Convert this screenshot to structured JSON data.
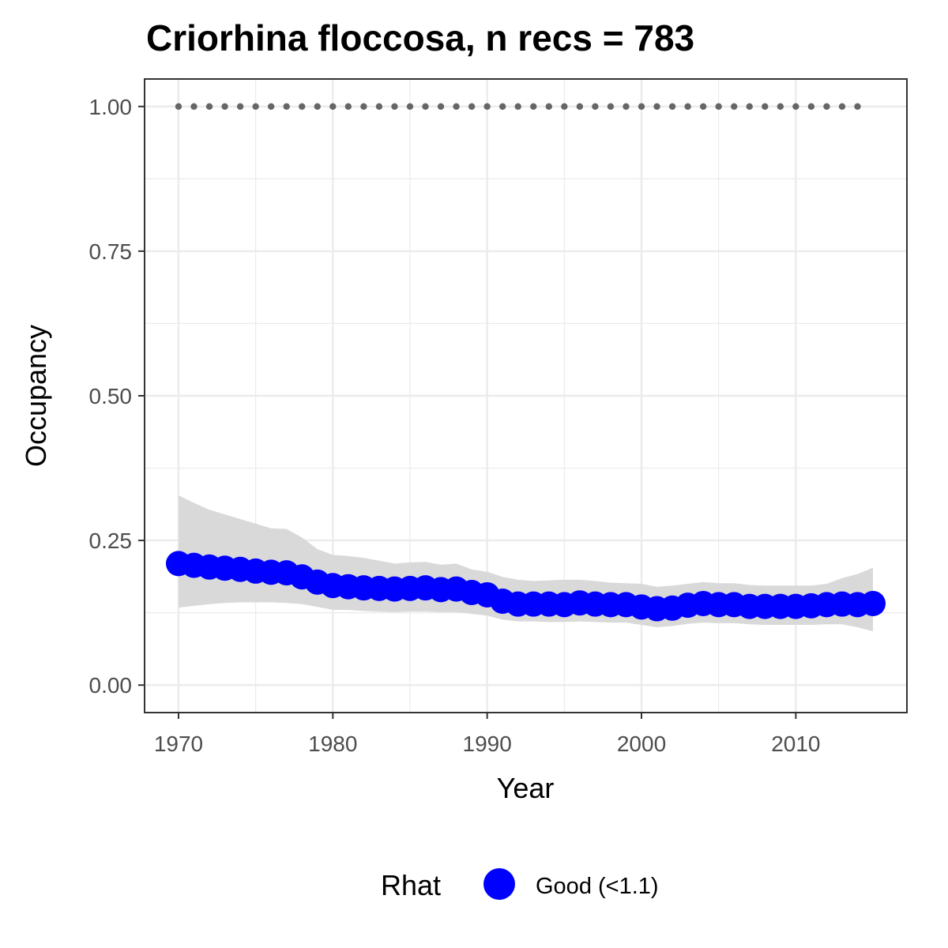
{
  "chart_data": {
    "type": "line",
    "title": "Criorhina floccosa, n recs = 783",
    "xlabel": "Year",
    "ylabel": "Occupancy",
    "xlim": [
      1967.8,
      2017.2
    ],
    "ylim": [
      -0.0475,
      1.0475
    ],
    "x_ticks": [
      1970,
      1980,
      1990,
      2000,
      2010
    ],
    "x_tick_labels": [
      "1970",
      "1980",
      "1990",
      "2000",
      "2010"
    ],
    "y_ticks": [
      0,
      0.25,
      0.5,
      0.75,
      1.0
    ],
    "y_tick_labels": [
      "0.00",
      "0.25",
      "0.50",
      "0.75",
      "1.00"
    ],
    "grid": true,
    "legend": {
      "title": "Rhat",
      "position": "bottom",
      "entries": [
        {
          "label": "Good (<1.1)",
          "color": "#0000ff"
        }
      ]
    },
    "colors": {
      "points": "#0000ff",
      "ribbon": "#d9d9d9",
      "reference_dots": "#666666",
      "grid": "#ebebeb",
      "panel_border": "#333333"
    },
    "series": [
      {
        "kind": "points",
        "x": [
          1970,
          1971,
          1972,
          1973,
          1974,
          1975,
          1976,
          1977,
          1978,
          1979,
          1980,
          1981,
          1982,
          1983,
          1984,
          1985,
          1986,
          1987,
          1988,
          1989,
          1990,
          1991,
          1992,
          1993,
          1994,
          1995,
          1996,
          1997,
          1998,
          1999,
          2000,
          2001,
          2002,
          2003,
          2004,
          2005,
          2006,
          2007,
          2008,
          2009,
          2010,
          2011,
          2012,
          2013,
          2014,
          2015
        ],
        "y": [
          0.21,
          0.207,
          0.204,
          0.202,
          0.2,
          0.197,
          0.195,
          0.194,
          0.187,
          0.178,
          0.172,
          0.17,
          0.168,
          0.167,
          0.166,
          0.167,
          0.168,
          0.165,
          0.166,
          0.16,
          0.156,
          0.145,
          0.14,
          0.14,
          0.14,
          0.139,
          0.142,
          0.14,
          0.139,
          0.139,
          0.135,
          0.132,
          0.133,
          0.138,
          0.141,
          0.139,
          0.139,
          0.136,
          0.136,
          0.136,
          0.136,
          0.137,
          0.139,
          0.14,
          0.139,
          0.141
        ]
      },
      {
        "kind": "ribbon",
        "x": [
          1970,
          1971,
          1972,
          1973,
          1974,
          1975,
          1976,
          1977,
          1978,
          1979,
          1980,
          1981,
          1982,
          1983,
          1984,
          1985,
          1986,
          1987,
          1988,
          1989,
          1990,
          1991,
          1992,
          1993,
          1994,
          1995,
          1996,
          1997,
          1998,
          1999,
          2000,
          2001,
          2002,
          2003,
          2004,
          2005,
          2006,
          2007,
          2008,
          2009,
          2010,
          2011,
          2012,
          2013,
          2014,
          2015
        ],
        "lower": [
          0.134,
          0.137,
          0.14,
          0.142,
          0.143,
          0.143,
          0.143,
          0.142,
          0.14,
          0.135,
          0.13,
          0.13,
          0.128,
          0.127,
          0.126,
          0.127,
          0.127,
          0.126,
          0.126,
          0.123,
          0.12,
          0.113,
          0.11,
          0.11,
          0.109,
          0.109,
          0.11,
          0.109,
          0.108,
          0.108,
          0.104,
          0.1,
          0.102,
          0.106,
          0.108,
          0.107,
          0.107,
          0.105,
          0.104,
          0.104,
          0.104,
          0.104,
          0.105,
          0.105,
          0.1,
          0.093
        ],
        "upper": [
          0.328,
          0.315,
          0.303,
          0.295,
          0.287,
          0.279,
          0.271,
          0.27,
          0.255,
          0.235,
          0.225,
          0.223,
          0.22,
          0.215,
          0.21,
          0.212,
          0.213,
          0.208,
          0.21,
          0.2,
          0.196,
          0.187,
          0.182,
          0.18,
          0.181,
          0.182,
          0.182,
          0.18,
          0.177,
          0.176,
          0.175,
          0.17,
          0.172,
          0.175,
          0.178,
          0.176,
          0.176,
          0.173,
          0.172,
          0.172,
          0.172,
          0.172,
          0.175,
          0.185,
          0.192,
          0.203
        ]
      },
      {
        "kind": "reference",
        "x": [
          1970,
          1971,
          1972,
          1973,
          1974,
          1975,
          1976,
          1977,
          1978,
          1979,
          1980,
          1981,
          1982,
          1983,
          1984,
          1985,
          1986,
          1987,
          1988,
          1989,
          1990,
          1991,
          1992,
          1993,
          1994,
          1995,
          1996,
          1997,
          1998,
          1999,
          2000,
          2001,
          2002,
          2003,
          2004,
          2005,
          2006,
          2007,
          2008,
          2009,
          2010,
          2011,
          2012,
          2013,
          2014
        ],
        "y": [
          1,
          1,
          1,
          1,
          1,
          1,
          1,
          1,
          1,
          1,
          1,
          1,
          1,
          1,
          1,
          1,
          1,
          1,
          1,
          1,
          1,
          1,
          1,
          1,
          1,
          1,
          1,
          1,
          1,
          1,
          1,
          1,
          1,
          1,
          1,
          1,
          1,
          1,
          1,
          1,
          1,
          1,
          1,
          1,
          1
        ]
      }
    ]
  }
}
